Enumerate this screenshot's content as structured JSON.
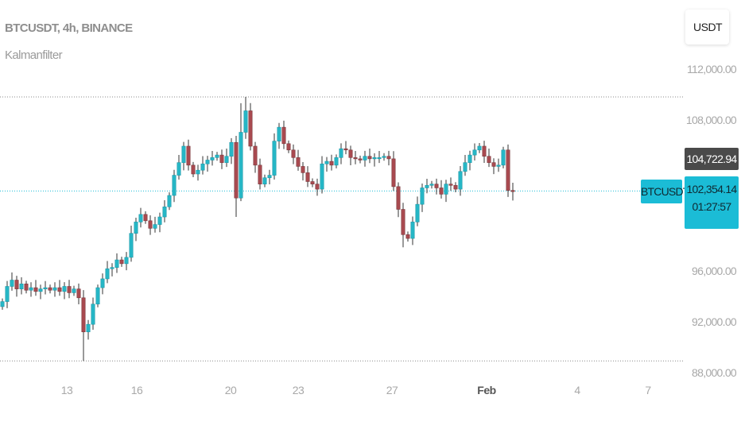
{
  "header": {
    "title": "BTCUSDT, 4h, BINANCE",
    "indicator": "Kalmanfilter"
  },
  "currency_button": "USDT",
  "price_tags": {
    "high": "104,722.94",
    "last": "102,354.14",
    "countdown": "01:27:57",
    "symbol": "BTCUSDT"
  },
  "colors": {
    "up": "#26b7c6",
    "down": "#a94a50",
    "wick": "#333333",
    "last_line": "#1bbcd6",
    "ref_line": "#888888"
  },
  "chart_data": {
    "type": "candlestick",
    "symbol": "BTCUSDT",
    "interval": "4h",
    "exchange": "BINANCE",
    "ylim": [
      85000,
      114000
    ],
    "y_ticks": [
      {
        "value": 112000,
        "label": "112,000.00"
      },
      {
        "value": 108000,
        "label": "108,000.00"
      },
      {
        "value": 96000,
        "label": "96,000.00"
      },
      {
        "value": 92000,
        "label": "92,000.00"
      },
      {
        "value": 88000,
        "label": "88,000.00"
      }
    ],
    "x_ticks": [
      {
        "label": "13",
        "bold": false
      },
      {
        "label": "16",
        "bold": false
      },
      {
        "label": "20",
        "bold": false
      },
      {
        "label": "23",
        "bold": false
      },
      {
        "label": "27",
        "bold": false
      },
      {
        "label": "Feb",
        "bold": true
      },
      {
        "label": "4",
        "bold": false
      },
      {
        "label": "7",
        "bold": false
      }
    ],
    "reference_lines": [
      109800,
      88900
    ],
    "last_price": 102354.14,
    "first_open": 93200,
    "closes": [
      93600,
      94800,
      95300,
      94600,
      95000,
      94500,
      94700,
      94400,
      94600,
      94700,
      94500,
      94700,
      94400,
      94800,
      94300,
      94600,
      93900,
      91200,
      91800,
      93400,
      94700,
      95400,
      96200,
      96300,
      96900,
      96600,
      97100,
      99000,
      99900,
      100500,
      100000,
      99400,
      99700,
      100300,
      101100,
      102000,
      103600,
      104600,
      105900,
      104400,
      103700,
      104000,
      104500,
      104800,
      105000,
      105200,
      104600,
      105100,
      106200,
      101800,
      107000,
      108700,
      105900,
      104400,
      102900,
      103400,
      103600,
      106300,
      107400,
      106100,
      105600,
      105000,
      104300,
      103800,
      103100,
      102900,
      102500,
      104500,
      104700,
      104400,
      105000,
      105700,
      105600,
      105000,
      104900,
      104800,
      105100,
      104900,
      105000,
      105000,
      105100,
      104900,
      102700,
      100900,
      98900,
      98600,
      99900,
      101300,
      102600,
      102800,
      102900,
      102600,
      102100,
      102900,
      102800,
      102500,
      103900,
      104600,
      105200,
      105600,
      105900,
      105100,
      104600,
      104300,
      104400,
      105600,
      102400,
      102354.14
    ],
    "wick_extremes": {
      "17": {
        "low": 88900
      },
      "49": {
        "low": 100300
      },
      "50": {
        "high": 109300
      },
      "51": {
        "high": 109800
      },
      "84": {
        "low": 97900
      },
      "107": {
        "low": 101600
      }
    }
  }
}
